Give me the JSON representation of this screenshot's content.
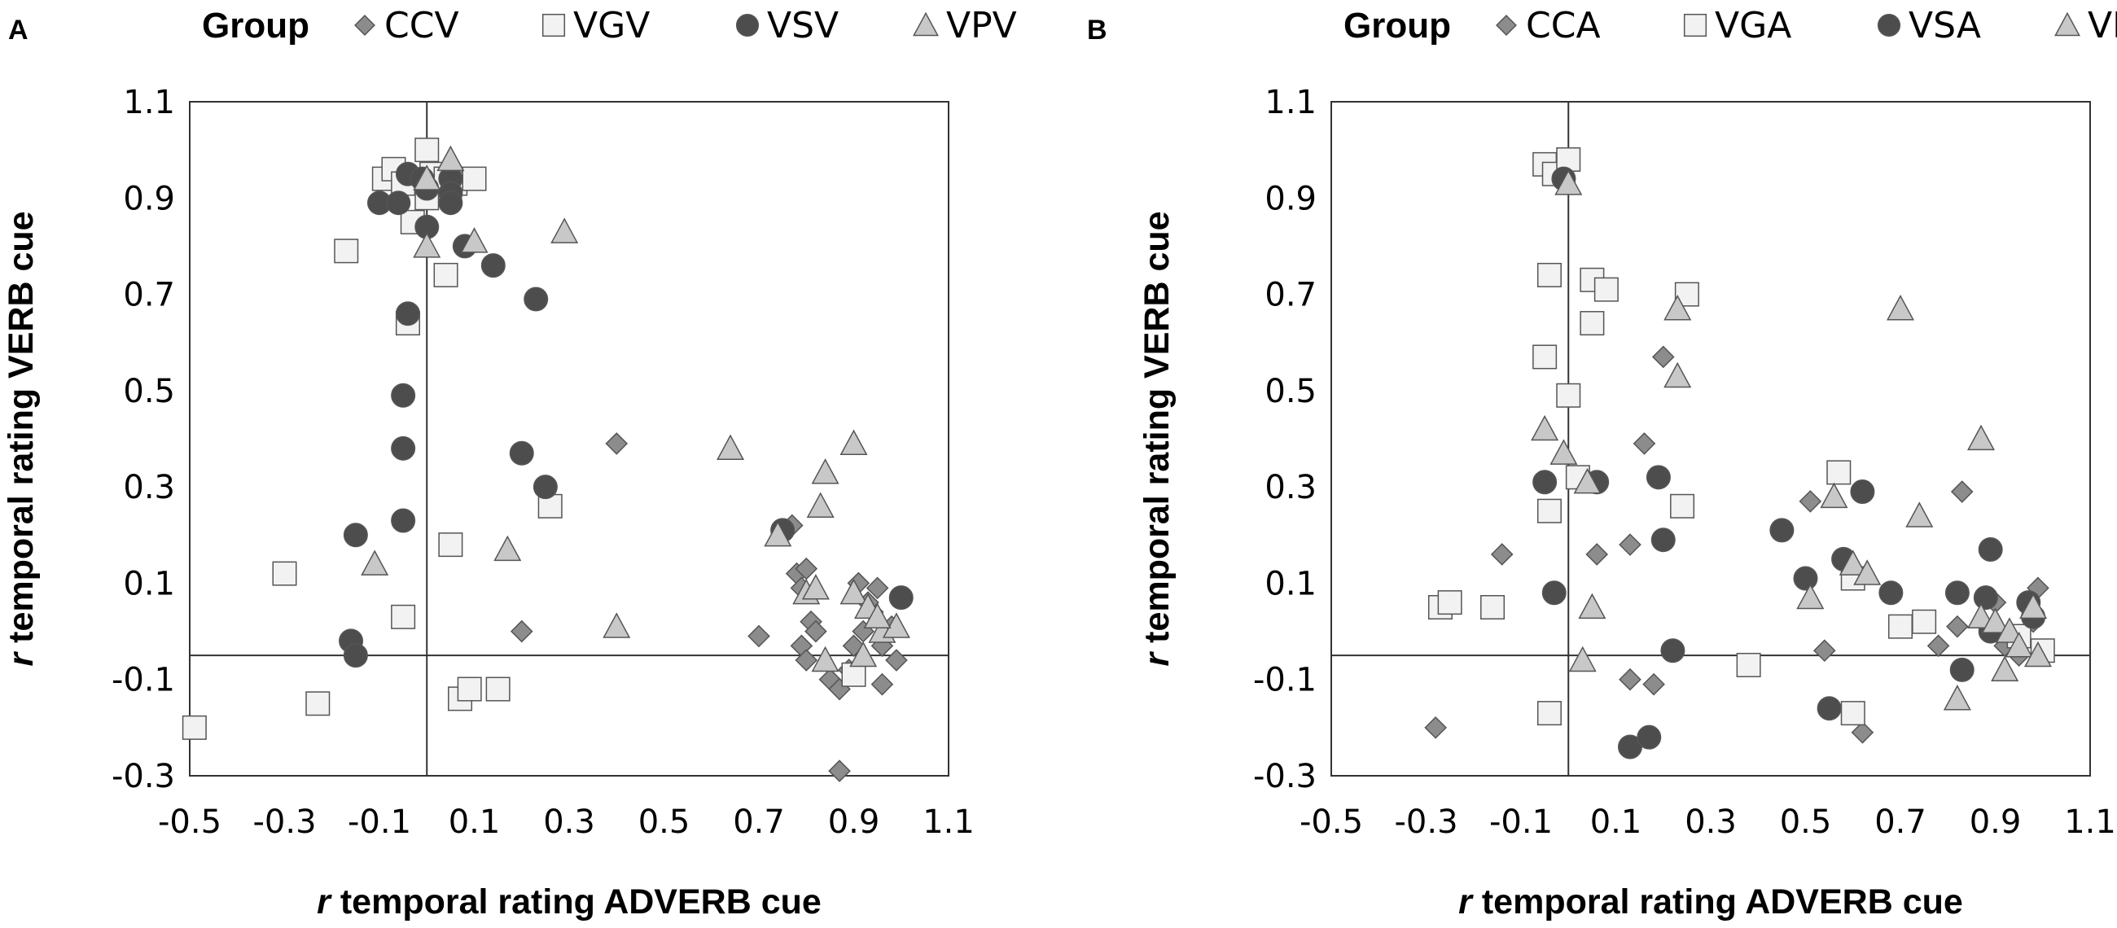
{
  "colors": {
    "diamond": "#8c8c8c",
    "square": "#f2f2f2",
    "circle": "#4d4d4d",
    "triangle": "#c8c8c8",
    "stroke": "#555555",
    "frame": "#333333"
  },
  "chart_data": [
    {
      "type": "scatter",
      "panel": "A",
      "legend_title": "Group",
      "xlabel": {
        "var": "r",
        "text": "temporal rating ADVERB cue"
      },
      "ylabel": {
        "var": "r",
        "text": "temporal rating VERB  cue"
      },
      "xlim": [
        -0.5,
        1.1
      ],
      "ylim": [
        -0.3,
        1.1
      ],
      "xticks": [
        "-0.5",
        "-0.3",
        "-0.1",
        "0.1",
        "0.3",
        "0.5",
        "0.7",
        "0.9",
        "1.1"
      ],
      "yticks": [
        "1.1",
        "0.9",
        "0.7",
        "0.5",
        "0.3",
        "0.1",
        "-0.1",
        "-0.3"
      ],
      "ref_lines": {
        "x": 0.0,
        "y": -0.05
      },
      "series": [
        {
          "name": "CCV",
          "marker": "diamond",
          "points": [
            [
              0.4,
              0.39
            ],
            [
              0.2,
              0.0
            ],
            [
              0.7,
              -0.01
            ],
            [
              0.77,
              0.22
            ],
            [
              0.78,
              0.12
            ],
            [
              0.8,
              0.13
            ],
            [
              0.79,
              0.09
            ],
            [
              0.81,
              0.02
            ],
            [
              0.82,
              0.0
            ],
            [
              0.79,
              -0.03
            ],
            [
              0.8,
              -0.06
            ],
            [
              0.85,
              -0.1
            ],
            [
              0.87,
              -0.12
            ],
            [
              0.89,
              -0.08
            ],
            [
              0.9,
              -0.03
            ],
            [
              0.92,
              0.0
            ],
            [
              0.94,
              0.04
            ],
            [
              0.96,
              -0.03
            ],
            [
              0.98,
              0.01
            ],
            [
              0.99,
              -0.06
            ],
            [
              0.96,
              -0.11
            ],
            [
              0.93,
              0.06
            ],
            [
              0.95,
              0.09
            ],
            [
              0.91,
              0.1
            ],
            [
              0.87,
              -0.29
            ]
          ]
        },
        {
          "name": "VGV",
          "marker": "square",
          "points": [
            [
              -0.49,
              -0.2
            ],
            [
              -0.3,
              0.12
            ],
            [
              -0.23,
              -0.15
            ],
            [
              -0.17,
              0.79
            ],
            [
              -0.09,
              0.94
            ],
            [
              -0.07,
              0.96
            ],
            [
              -0.05,
              0.93
            ],
            [
              -0.03,
              0.85
            ],
            [
              -0.04,
              0.64
            ],
            [
              0.0,
              1.0
            ],
            [
              0.01,
              0.95
            ],
            [
              0.0,
              0.9
            ],
            [
              0.04,
              0.94
            ],
            [
              0.06,
              0.93
            ],
            [
              0.1,
              0.94
            ],
            [
              0.04,
              0.74
            ],
            [
              0.05,
              0.18
            ],
            [
              -0.05,
              0.03
            ],
            [
              0.07,
              -0.14
            ],
            [
              0.09,
              -0.12
            ],
            [
              0.15,
              -0.12
            ],
            [
              0.26,
              0.26
            ],
            [
              0.9,
              -0.09
            ]
          ]
        },
        {
          "name": "VSV",
          "marker": "circle",
          "points": [
            [
              -0.1,
              0.89
            ],
            [
              -0.06,
              0.89
            ],
            [
              -0.04,
              0.95
            ],
            [
              -0.01,
              0.94
            ],
            [
              0.0,
              0.92
            ],
            [
              0.05,
              0.94
            ],
            [
              0.05,
              0.91
            ],
            [
              0.05,
              0.89
            ],
            [
              0.0,
              0.84
            ],
            [
              0.08,
              0.8
            ],
            [
              0.14,
              0.76
            ],
            [
              0.23,
              0.69
            ],
            [
              -0.04,
              0.66
            ],
            [
              -0.05,
              0.49
            ],
            [
              -0.05,
              0.38
            ],
            [
              -0.05,
              0.23
            ],
            [
              -0.15,
              0.2
            ],
            [
              0.2,
              0.37
            ],
            [
              0.25,
              0.3
            ],
            [
              0.75,
              0.21
            ],
            [
              -0.16,
              -0.02
            ],
            [
              -0.15,
              -0.05
            ],
            [
              1.0,
              0.07
            ]
          ]
        },
        {
          "name": "VPV",
          "marker": "triangle",
          "points": [
            [
              0.0,
              0.94
            ],
            [
              0.05,
              0.98
            ],
            [
              0.1,
              0.81
            ],
            [
              0.0,
              0.8
            ],
            [
              0.29,
              0.83
            ],
            [
              0.64,
              0.38
            ],
            [
              0.9,
              0.39
            ],
            [
              0.84,
              0.33
            ],
            [
              0.83,
              0.26
            ],
            [
              0.74,
              0.2
            ],
            [
              0.17,
              0.17
            ],
            [
              -0.11,
              0.14
            ],
            [
              0.4,
              0.01
            ],
            [
              0.8,
              0.08
            ],
            [
              0.82,
              0.09
            ],
            [
              0.9,
              0.08
            ],
            [
              0.93,
              0.05
            ],
            [
              0.96,
              0.0
            ],
            [
              0.99,
              0.01
            ],
            [
              0.84,
              -0.06
            ],
            [
              0.92,
              -0.05
            ],
            [
              0.95,
              0.03
            ]
          ]
        }
      ]
    },
    {
      "type": "scatter",
      "panel": "B",
      "legend_title": "Group",
      "xlabel": {
        "var": "r",
        "text": "temporal rating ADVERB cue"
      },
      "ylabel": {
        "var": "r",
        "text": "temporal rating VERB  cue"
      },
      "xlim": [
        -0.5,
        1.1
      ],
      "ylim": [
        -0.3,
        1.1
      ],
      "xticks": [
        "-0.5",
        "-0.3",
        "-0.1",
        "0.1",
        "0.3",
        "0.5",
        "0.7",
        "0.9",
        "1.1"
      ],
      "yticks": [
        "1.1",
        "0.9",
        "0.7",
        "0.5",
        "0.3",
        "0.1",
        "-0.1",
        "-0.3"
      ],
      "ref_lines": {
        "x": 0.0,
        "y": -0.05
      },
      "series": [
        {
          "name": "CCA",
          "marker": "diamond",
          "points": [
            [
              -0.28,
              -0.2
            ],
            [
              -0.14,
              0.16
            ],
            [
              0.06,
              0.16
            ],
            [
              0.13,
              0.18
            ],
            [
              0.16,
              0.39
            ],
            [
              0.2,
              0.57
            ],
            [
              0.13,
              -0.1
            ],
            [
              0.18,
              -0.11
            ],
            [
              0.51,
              0.27
            ],
            [
              0.54,
              -0.04
            ],
            [
              0.62,
              -0.21
            ],
            [
              0.78,
              -0.03
            ],
            [
              0.82,
              0.01
            ],
            [
              0.83,
              0.29
            ],
            [
              0.9,
              0.06
            ],
            [
              0.92,
              -0.03
            ],
            [
              0.95,
              -0.05
            ],
            [
              0.98,
              0.02
            ],
            [
              0.99,
              0.09
            ]
          ]
        },
        {
          "name": "VGA",
          "marker": "square",
          "points": [
            [
              -0.27,
              0.05
            ],
            [
              -0.25,
              0.06
            ],
            [
              -0.16,
              0.05
            ],
            [
              -0.05,
              0.97
            ],
            [
              -0.03,
              0.95
            ],
            [
              0.0,
              0.98
            ],
            [
              -0.04,
              0.74
            ],
            [
              -0.05,
              0.57
            ],
            [
              0.0,
              0.49
            ],
            [
              -0.04,
              0.25
            ],
            [
              0.02,
              0.32
            ],
            [
              0.05,
              0.73
            ],
            [
              0.08,
              0.71
            ],
            [
              0.05,
              0.64
            ],
            [
              0.25,
              0.7
            ],
            [
              0.24,
              0.26
            ],
            [
              -0.04,
              -0.17
            ],
            [
              0.38,
              -0.07
            ],
            [
              0.57,
              0.33
            ],
            [
              0.6,
              0.11
            ],
            [
              0.6,
              -0.17
            ],
            [
              0.7,
              0.01
            ],
            [
              0.75,
              0.02
            ],
            [
              0.95,
              -0.01
            ],
            [
              1.0,
              -0.04
            ]
          ]
        },
        {
          "name": "VSA",
          "marker": "circle",
          "points": [
            [
              -0.01,
              0.94
            ],
            [
              -0.05,
              0.31
            ],
            [
              0.06,
              0.31
            ],
            [
              -0.03,
              0.08
            ],
            [
              0.19,
              0.32
            ],
            [
              0.2,
              0.19
            ],
            [
              0.22,
              -0.04
            ],
            [
              0.13,
              -0.24
            ],
            [
              0.17,
              -0.22
            ],
            [
              0.45,
              0.21
            ],
            [
              0.5,
              0.11
            ],
            [
              0.55,
              -0.16
            ],
            [
              0.58,
              0.15
            ],
            [
              0.62,
              0.29
            ],
            [
              0.68,
              0.08
            ],
            [
              0.82,
              0.08
            ],
            [
              0.88,
              0.07
            ],
            [
              0.89,
              0.17
            ],
            [
              0.89,
              0.0
            ],
            [
              0.83,
              -0.08
            ],
            [
              0.97,
              0.06
            ],
            [
              0.98,
              0.03
            ]
          ]
        },
        {
          "name": "VPA",
          "marker": "triangle",
          "points": [
            [
              0.0,
              0.93
            ],
            [
              -0.05,
              0.42
            ],
            [
              -0.01,
              0.37
            ],
            [
              0.04,
              0.31
            ],
            [
              0.23,
              0.67
            ],
            [
              0.23,
              0.53
            ],
            [
              0.7,
              0.67
            ],
            [
              0.56,
              0.28
            ],
            [
              0.6,
              0.14
            ],
            [
              0.63,
              0.12
            ],
            [
              0.74,
              0.24
            ],
            [
              0.87,
              0.4
            ],
            [
              0.51,
              0.07
            ],
            [
              0.05,
              0.05
            ],
            [
              0.03,
              -0.06
            ],
            [
              0.82,
              -0.14
            ],
            [
              0.87,
              0.03
            ],
            [
              0.9,
              0.02
            ],
            [
              0.93,
              0.0
            ],
            [
              0.95,
              -0.03
            ],
            [
              0.98,
              0.05
            ],
            [
              0.99,
              -0.05
            ],
            [
              0.92,
              -0.08
            ]
          ]
        }
      ]
    }
  ]
}
